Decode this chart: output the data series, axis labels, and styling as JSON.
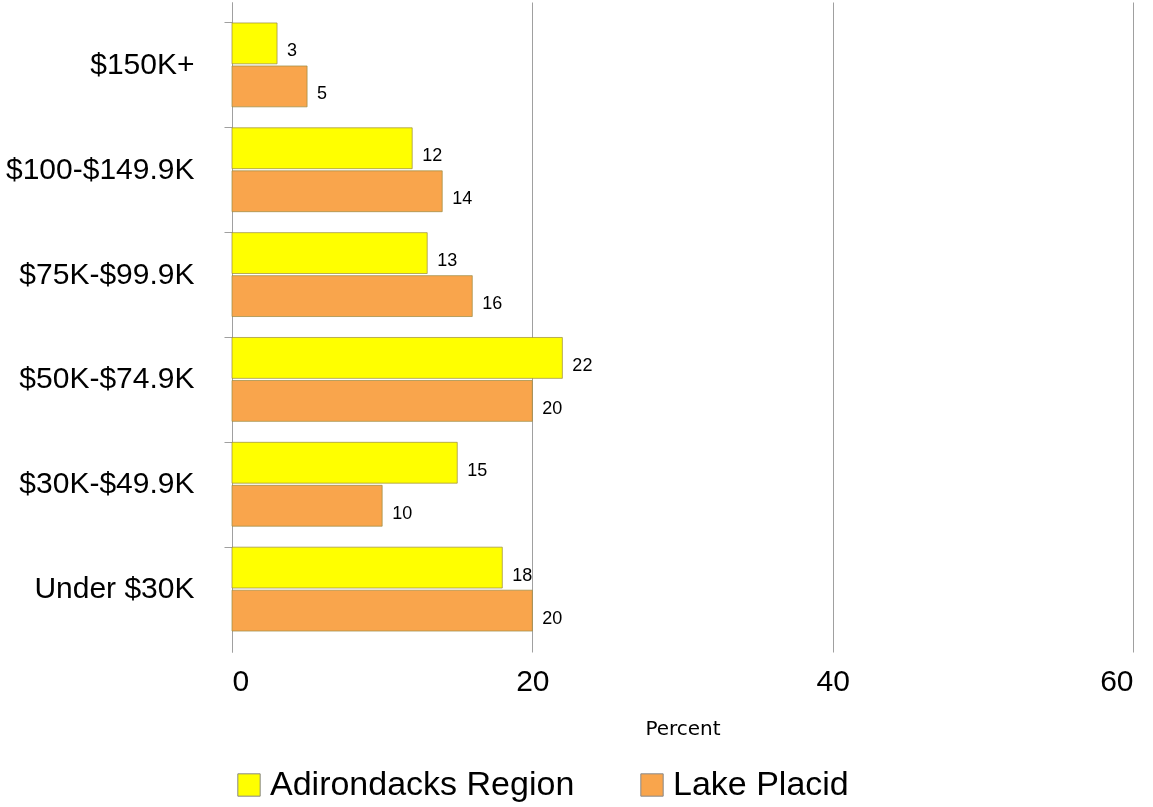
{
  "chart_data": {
    "type": "bar",
    "orientation": "horizontal",
    "xlabel": "Percent",
    "categories": [
      "$150K+",
      "$100-$149.9K",
      "$75K-$99.9K",
      "$50K-$74.9K",
      "$30K-$49.9K",
      "Under $30K"
    ],
    "series": [
      {
        "name": "Adirondacks Region",
        "color": "#ffff00",
        "values": [
          3,
          12,
          13,
          22,
          15,
          18
        ]
      },
      {
        "name": "Lake Placid",
        "color": "#f9a54c",
        "values": [
          5,
          14,
          16,
          20,
          10,
          20
        ]
      }
    ],
    "xlim": [
      0,
      60
    ],
    "xticks": [
      0,
      20,
      40,
      60
    ],
    "grid": "x",
    "legend": "bottom",
    "data_labels": true
  }
}
